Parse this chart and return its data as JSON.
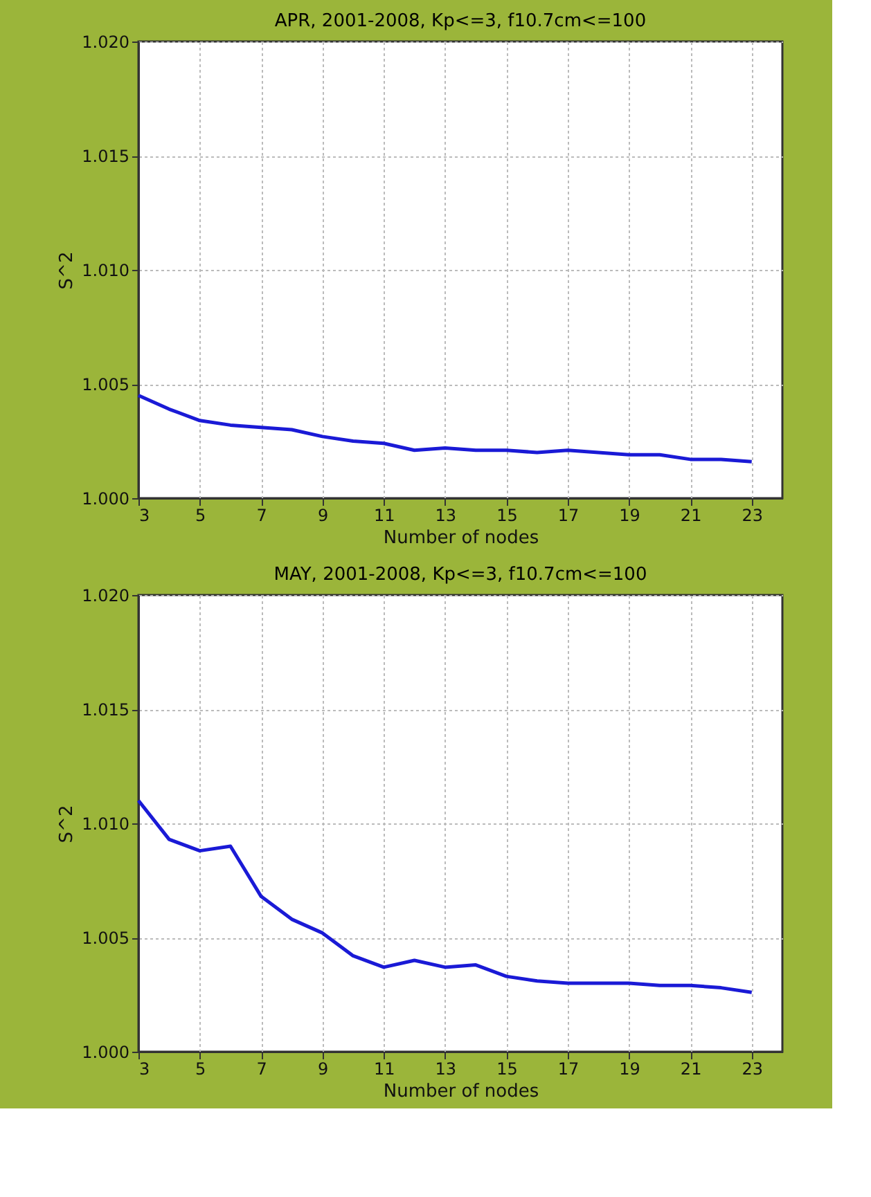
{
  "chart_data": [
    {
      "type": "line",
      "title": "APR, 2001-2008,  Kp<=3,  f10.7cm<=100",
      "xlabel": "Number of nodes",
      "ylabel": "S^2",
      "x": [
        3,
        4,
        5,
        6,
        7,
        8,
        9,
        10,
        11,
        12,
        13,
        14,
        15,
        16,
        17,
        18,
        19,
        20,
        21,
        22,
        23
      ],
      "series": [
        {
          "color": "#1a1ad6",
          "values": [
            1.0045,
            1.0039,
            1.0034,
            1.0032,
            1.0031,
            1.003,
            1.0027,
            1.0025,
            1.0024,
            1.0021,
            1.0022,
            1.0021,
            1.0021,
            1.002,
            1.0021,
            1.002,
            1.0019,
            1.0019,
            1.0017,
            1.0017,
            1.0016
          ]
        }
      ],
      "xlim": [
        3,
        24
      ],
      "xticks": [
        3,
        5,
        7,
        9,
        11,
        13,
        15,
        17,
        19,
        21,
        23
      ],
      "ylim": [
        1.0,
        1.02
      ],
      "yticks": [
        {
          "value": 1.0,
          "label": "1.000"
        },
        {
          "value": 1.005,
          "label": "1.005"
        },
        {
          "value": 1.01,
          "label": "1.010"
        },
        {
          "value": 1.015,
          "label": "1.015"
        },
        {
          "value": 1.02,
          "label": "1.020"
        }
      ],
      "grid": true,
      "line_style": "solid"
    },
    {
      "type": "line",
      "title": "MAY, 2001-2008,  Kp<=3,  f10.7cm<=100",
      "xlabel": "Number of nodes",
      "ylabel": "S^2",
      "x": [
        3,
        4,
        5,
        6,
        7,
        8,
        9,
        10,
        11,
        12,
        13,
        14,
        15,
        16,
        17,
        18,
        19,
        20,
        21,
        22,
        23
      ],
      "series": [
        {
          "color": "#1a1ad6",
          "values": [
            1.011,
            1.0093,
            1.0088,
            1.009,
            1.0068,
            1.0058,
            1.0052,
            1.0042,
            1.0037,
            1.004,
            1.0037,
            1.0038,
            1.0033,
            1.0031,
            1.003,
            1.003,
            1.003,
            1.0029,
            1.0029,
            1.0028,
            1.0026
          ]
        }
      ],
      "xlim": [
        3,
        24
      ],
      "xticks": [
        3,
        5,
        7,
        9,
        11,
        13,
        15,
        17,
        19,
        21,
        23
      ],
      "ylim": [
        1.0,
        1.02
      ],
      "yticks": [
        {
          "value": 1.0,
          "label": "1.000"
        },
        {
          "value": 1.005,
          "label": "1.005"
        },
        {
          "value": 1.01,
          "label": "1.010"
        },
        {
          "value": 1.015,
          "label": "1.015"
        },
        {
          "value": 1.02,
          "label": "1.020"
        }
      ],
      "grid": true,
      "line_style": "solid"
    }
  ]
}
